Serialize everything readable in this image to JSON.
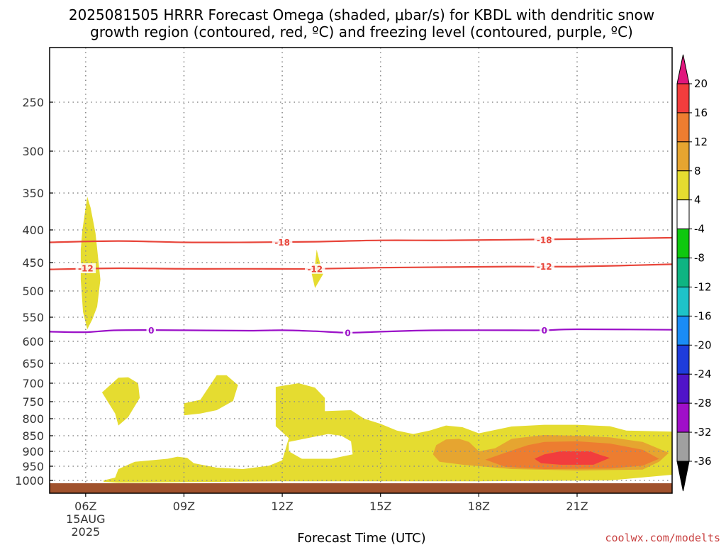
{
  "title_lines": [
    "2025081505 HRRR Forecast Omega (shaded, μbar/s) for KBDL with dendritic snow",
    "growth region (contoured, red, ºC) and freezing level (contoured, purple, ºC)"
  ],
  "credit": "coolwx.com/modelts",
  "colors": {
    "temp_contour": "#e8453a",
    "freezing_contour": "#9b10c8",
    "ground": "#a0522d",
    "grid": "#8c8c8c",
    "credit": "#c84040"
  },
  "chart_data": {
    "type": "heatmap",
    "title": "2025081505 HRRR Forecast Omega (shaded, μbar/s) for KBDL with dendritic snow growth region (contoured, red, ºC) and freezing level (contoured, purple, ºC)",
    "xlabel": "Forecast Time (UTC)",
    "ylabel": "",
    "x_range_hours_utc": [
      4.9,
      23.9
    ],
    "y_range_hpa": [
      200,
      1025
    ],
    "y_scale": "pressure (log-like)",
    "x_ticks": [
      {
        "hour": 6,
        "label": "06Z",
        "sublabels": [
          "15AUG",
          "2025"
        ]
      },
      {
        "hour": 9,
        "label": "09Z"
      },
      {
        "hour": 12,
        "label": "12Z"
      },
      {
        "hour": 15,
        "label": "15Z"
      },
      {
        "hour": 18,
        "label": "18Z"
      },
      {
        "hour": 21,
        "label": "21Z"
      }
    ],
    "y_ticks": [
      250,
      300,
      350,
      400,
      450,
      500,
      550,
      600,
      650,
      700,
      750,
      800,
      850,
      900,
      950,
      1000
    ],
    "grid": true,
    "colorbar": {
      "label_values": [
        20,
        16,
        12,
        8,
        4,
        -4,
        -8,
        -12,
        -16,
        -20,
        -24,
        -28,
        -32,
        -36
      ],
      "bins": [
        {
          "range": "above 20",
          "color": "#e0167d"
        },
        {
          "range": "16 to 20",
          "color": "#f23d3d"
        },
        {
          "range": "12 to 16",
          "color": "#ed7d30"
        },
        {
          "range": "8 to 12",
          "color": "#e6a530"
        },
        {
          "range": "4 to 8",
          "color": "#e5dc30"
        },
        {
          "range": "-4 to 4",
          "color": "#ffffff"
        },
        {
          "range": "-8 to -4",
          "color": "#0fc80f"
        },
        {
          "range": "-12 to -8",
          "color": "#0fb482"
        },
        {
          "range": "-16 to -12",
          "color": "#1ec3c8"
        },
        {
          "range": "-20 to -16",
          "color": "#1a8cf5"
        },
        {
          "range": "-24 to -20",
          "color": "#1e3cdc"
        },
        {
          "range": "-28 to -24",
          "color": "#5014c8"
        },
        {
          "range": "-32 to -28",
          "color": "#a00fc8"
        },
        {
          "range": "-36 to -32",
          "color": "#a0a0a0"
        },
        {
          "range": "below -36",
          "color": "#000000"
        }
      ]
    },
    "contours": [
      {
        "name": "-18",
        "color": "#e8453a",
        "points": [
          [
            4.9,
            419
          ],
          [
            7,
            417
          ],
          [
            9,
            419
          ],
          [
            11,
            419
          ],
          [
            13,
            418
          ],
          [
            15,
            416
          ],
          [
            17,
            416
          ],
          [
            19,
            415
          ],
          [
            21,
            414
          ],
          [
            23.9,
            412
          ]
        ],
        "labels": [
          [
            12.0,
            419
          ],
          [
            20.0,
            415
          ]
        ]
      },
      {
        "name": "-12",
        "color": "#e8453a",
        "points": [
          [
            4.9,
            462
          ],
          [
            7,
            460
          ],
          [
            9,
            461
          ],
          [
            11,
            461
          ],
          [
            13,
            461
          ],
          [
            15,
            459
          ],
          [
            17,
            458
          ],
          [
            19,
            457
          ],
          [
            21,
            457
          ],
          [
            23.9,
            453
          ]
        ],
        "labels": [
          [
            6.0,
            460
          ],
          [
            13.0,
            461
          ],
          [
            20.0,
            457
          ]
        ]
      },
      {
        "name": "0",
        "color": "#9b10c8",
        "points": [
          [
            4.9,
            580
          ],
          [
            6,
            581
          ],
          [
            7,
            577
          ],
          [
            9,
            577
          ],
          [
            11,
            578
          ],
          [
            12,
            577
          ],
          [
            13,
            579
          ],
          [
            14,
            582
          ],
          [
            15,
            580
          ],
          [
            16,
            578
          ],
          [
            17,
            577
          ],
          [
            19,
            577
          ],
          [
            20,
            577
          ],
          [
            21,
            575
          ],
          [
            23.9,
            576
          ]
        ],
        "labels": [
          [
            8.0,
            577
          ],
          [
            14.0,
            582
          ],
          [
            20.0,
            577
          ]
        ]
      }
    ],
    "shaded_regions": [
      {
        "omega_bin": "4 to 8",
        "color": "#e5dc30",
        "points": [
          [
            5.9,
            400
          ],
          [
            6.0,
            370
          ],
          [
            6.05,
            355
          ],
          [
            6.15,
            370
          ],
          [
            6.3,
            405
          ],
          [
            6.45,
            480
          ],
          [
            6.35,
            530
          ],
          [
            6.2,
            555
          ],
          [
            6.05,
            575
          ],
          [
            5.92,
            540
          ],
          [
            5.85,
            480
          ],
          [
            5.85,
            430
          ]
        ]
      },
      {
        "omega_bin": "4 to 8",
        "color": "#e5dc30",
        "points": [
          [
            13.0,
            455
          ],
          [
            13.05,
            430
          ],
          [
            13.15,
            450
          ],
          [
            13.25,
            470
          ],
          [
            13.1,
            485
          ],
          [
            13.0,
            495
          ],
          [
            12.9,
            470
          ]
        ]
      },
      {
        "omega_bin": "4 to 8",
        "color": "#e5dc30",
        "points": [
          [
            6.5,
            725
          ],
          [
            7.0,
            686
          ],
          [
            7.3,
            685
          ],
          [
            7.6,
            700
          ],
          [
            7.65,
            740
          ],
          [
            7.3,
            795
          ],
          [
            7.0,
            820
          ],
          [
            6.9,
            785
          ]
        ]
      },
      {
        "omega_bin": "4 to 8",
        "color": "#e5dc30",
        "points": [
          [
            9.0,
            755
          ],
          [
            9.5,
            745
          ],
          [
            10.0,
            680
          ],
          [
            10.3,
            680
          ],
          [
            10.65,
            705
          ],
          [
            10.5,
            748
          ],
          [
            10.0,
            775
          ],
          [
            9.5,
            785
          ],
          [
            9.0,
            790
          ]
        ]
      },
      {
        "omega_bin": "4 to 8",
        "color": "#e5dc30",
        "points": [
          [
            6.55,
            1000
          ],
          [
            6.9,
            990
          ],
          [
            7.0,
            960
          ],
          [
            7.5,
            935
          ],
          [
            8.5,
            925
          ],
          [
            8.8,
            918
          ],
          [
            9.1,
            922
          ],
          [
            9.3,
            940
          ],
          [
            10.0,
            955
          ],
          [
            10.8,
            960
          ],
          [
            11.6,
            948
          ],
          [
            12.0,
            930
          ],
          [
            12.2,
            858
          ],
          [
            11.8,
            822
          ],
          [
            11.8,
            745
          ],
          [
            11.8,
            710
          ],
          [
            12.5,
            700
          ],
          [
            13.0,
            712
          ],
          [
            13.3,
            740
          ],
          [
            13.3,
            778
          ],
          [
            14.1,
            775
          ],
          [
            14.5,
            800
          ],
          [
            15.0,
            815
          ],
          [
            15.5,
            835
          ],
          [
            16.0,
            845
          ],
          [
            16.5,
            835
          ],
          [
            17.0,
            820
          ],
          [
            17.5,
            825
          ],
          [
            18.0,
            843
          ],
          [
            19.0,
            823
          ],
          [
            20.0,
            818
          ],
          [
            21.0,
            818
          ],
          [
            22.0,
            822
          ],
          [
            22.5,
            835
          ],
          [
            23.9,
            838
          ],
          [
            23.9,
            980
          ],
          [
            22.0,
            1000
          ],
          [
            18.0,
            1003
          ],
          [
            12.0,
            1003
          ],
          [
            7.0,
            1008
          ],
          [
            6.55,
            1005
          ]
        ],
        "holes": [
          [
            [
              12.2,
              870
            ],
            [
              13.0,
              853
            ],
            [
              13.4,
              845
            ],
            [
              13.8,
              850
            ],
            [
              14.1,
              868
            ],
            [
              14.15,
              910
            ],
            [
              13.5,
              925
            ],
            [
              12.6,
              925
            ],
            [
              12.2,
              900
            ]
          ]
        ]
      },
      {
        "omega_bin": "8 to 12",
        "color": "#e6a530",
        "points": [
          [
            16.7,
            880
          ],
          [
            17.0,
            862
          ],
          [
            17.4,
            860
          ],
          [
            17.7,
            870
          ],
          [
            18.0,
            900
          ],
          [
            18.5,
            890
          ],
          [
            19.0,
            860
          ],
          [
            20.0,
            848
          ],
          [
            21.0,
            850
          ],
          [
            22.0,
            855
          ],
          [
            23.0,
            870
          ],
          [
            23.8,
            905
          ],
          [
            23.5,
            935
          ],
          [
            23.0,
            962
          ],
          [
            21.0,
            965
          ],
          [
            19.0,
            960
          ],
          [
            17.5,
            945
          ],
          [
            16.8,
            935
          ],
          [
            16.6,
            910
          ]
        ]
      },
      {
        "omega_bin": "12 to 16",
        "color": "#ed7d30",
        "points": [
          [
            18.2,
            928
          ],
          [
            18.8,
            905
          ],
          [
            19.5,
            880
          ],
          [
            20.0,
            870
          ],
          [
            21.0,
            868
          ],
          [
            22.0,
            875
          ],
          [
            23.0,
            895
          ],
          [
            23.5,
            925
          ],
          [
            23.0,
            948
          ],
          [
            22.0,
            958
          ],
          [
            20.0,
            960
          ],
          [
            18.8,
            952
          ]
        ]
      },
      {
        "omega_bin": "16 to 20",
        "color": "#f23d3d",
        "points": [
          [
            19.7,
            925
          ],
          [
            20.0,
            910
          ],
          [
            20.5,
            900
          ],
          [
            21.4,
            900
          ],
          [
            21.7,
            912
          ],
          [
            22.0,
            922
          ],
          [
            21.5,
            945
          ],
          [
            20.5,
            945
          ],
          [
            19.9,
            940
          ]
        ]
      }
    ],
    "ground_pressure_hpa": 1010
  },
  "axes": {
    "xlabel": "Forecast Time (UTC)"
  }
}
